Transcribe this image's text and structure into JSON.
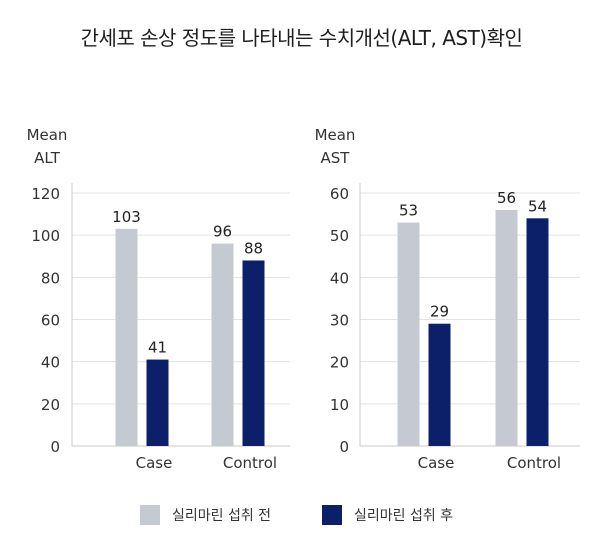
{
  "title": "간세포 손상 정도를 나타내는 수치개선(ALT, AST)확인",
  "colors": {
    "before": "#c5c9d2",
    "after": "#0b2068",
    "grid": "#e3e3e3",
    "axis": "#c9c9c9"
  },
  "legend": {
    "before": "실리마린 섭취 전",
    "after": "실리마린 섭취 후"
  },
  "chart_data": [
    {
      "type": "bar",
      "ylabel": [
        "Mean",
        "ALT"
      ],
      "ylim": [
        0,
        120
      ],
      "yticks": [
        0,
        20,
        40,
        60,
        80,
        100,
        120
      ],
      "categories": [
        "Case",
        "Control"
      ],
      "series": [
        {
          "name": "실리마린 섭취 전",
          "values": [
            103,
            96
          ]
        },
        {
          "name": "실리마린 섭취 후",
          "values": [
            41,
            88
          ]
        }
      ],
      "grid": true
    },
    {
      "type": "bar",
      "ylabel": [
        "Mean",
        "AST"
      ],
      "ylim": [
        0,
        60
      ],
      "yticks": [
        0,
        10,
        20,
        30,
        40,
        50,
        60
      ],
      "categories": [
        "Case",
        "Control"
      ],
      "series": [
        {
          "name": "실리마린 섭취 전",
          "values": [
            53,
            56
          ]
        },
        {
          "name": "실리마린 섭취 후",
          "values": [
            29,
            54
          ]
        }
      ],
      "grid": true
    }
  ]
}
